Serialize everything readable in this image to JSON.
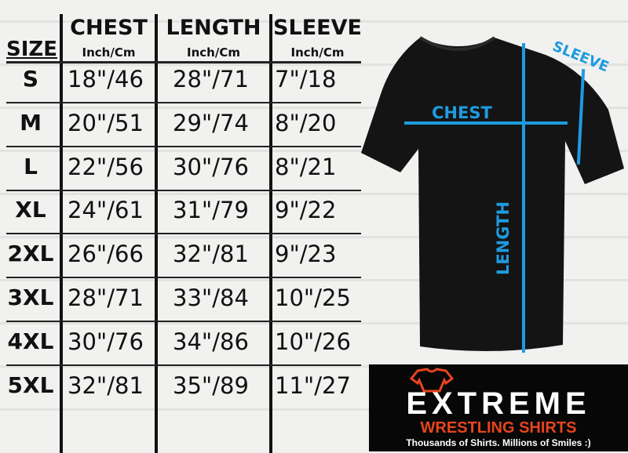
{
  "table": {
    "size_header": "SIZE",
    "columns": [
      {
        "title": "CHEST",
        "unit": "Inch/Cm"
      },
      {
        "title": "LENGTH",
        "unit": "Inch/Cm"
      },
      {
        "title": "SLEEVE",
        "unit": "Inch/Cm"
      }
    ],
    "rows": [
      {
        "size": "S",
        "chest": "18\"/46",
        "length": "28\"/71",
        "sleeve": "7\"/18"
      },
      {
        "size": "M",
        "chest": "20\"/51",
        "length": "29\"/74",
        "sleeve": "8\"/20"
      },
      {
        "size": "L",
        "chest": "22\"/56",
        "length": "30\"/76",
        "sleeve": "8\"/21"
      },
      {
        "size": "XL",
        "chest": "24\"/61",
        "length": "31\"/79",
        "sleeve": "9\"/22"
      },
      {
        "size": "2XL",
        "chest": "26\"/66",
        "length": "32\"/81",
        "sleeve": "9\"/23"
      },
      {
        "size": "3XL",
        "chest": "28\"/71",
        "length": "33\"/84",
        "sleeve": "10\"/25"
      },
      {
        "size": "4XL",
        "chest": "30\"/76",
        "length": "34\"/86",
        "sleeve": "10\"/26"
      },
      {
        "size": "5XL",
        "chest": "32\"/81",
        "length": "35\"/89",
        "sleeve": "11\"/27"
      }
    ]
  },
  "diagram": {
    "chest": "CHEST",
    "length": "LENGTH",
    "sleeve": "SLEEVE",
    "accent": "#1e9be0"
  },
  "logo": {
    "brand": "EXTREME",
    "line2": "WRESTLING SHIRTS",
    "tagline": "Thousands of Shirts. Millions of Smiles :)",
    "accent": "#e8441e"
  }
}
